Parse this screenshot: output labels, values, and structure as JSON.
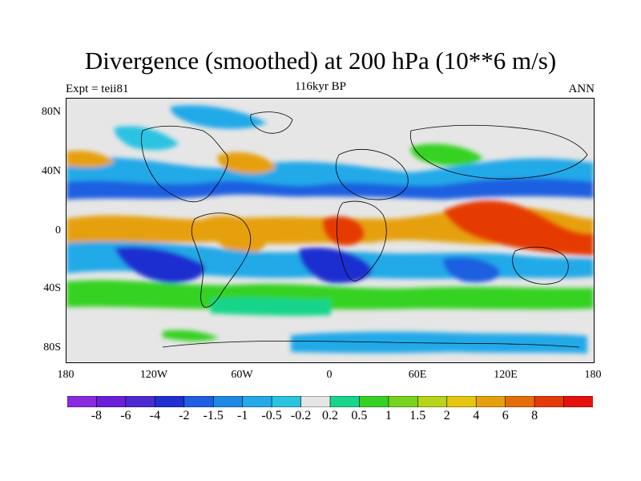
{
  "header": {
    "title": "Divergence (smoothed) at 200 hPa (10**6 m/s)",
    "left": "Expt = teii81",
    "center": "116kyr BP",
    "right": "ANN"
  },
  "axes": {
    "y_labels": [
      "80N",
      "40N",
      "0",
      "40S",
      "80S"
    ],
    "x_labels": [
      "180",
      "120W",
      "60W",
      "0",
      "60E",
      "120E",
      "180"
    ]
  },
  "colorbar": {
    "colors": [
      "#8a2be2",
      "#6a1fd8",
      "#4b2bd0",
      "#1f2fd0",
      "#1e5ee0",
      "#1e88e5",
      "#23a9e8",
      "#2ac3e2",
      "#e6e6e6",
      "#17d58a",
      "#35d223",
      "#76d41e",
      "#b6d419",
      "#e6c60e",
      "#e6a00c",
      "#e66c08",
      "#e63a06",
      "#e6100f"
    ],
    "tick_labels": [
      "-8",
      "-6",
      "-4",
      "-2",
      "-1.5",
      "-1",
      "-0.5",
      "-0.2",
      "0.2",
      "0.5",
      "1",
      "1.5",
      "2",
      "4",
      "6",
      "8"
    ]
  }
}
